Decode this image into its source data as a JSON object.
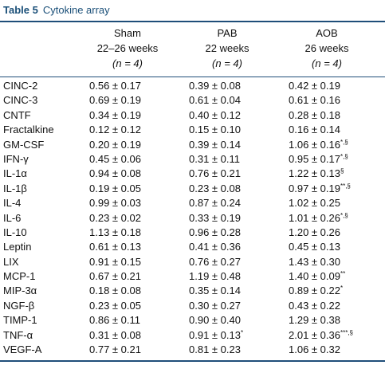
{
  "caption": {
    "label": "Table 5",
    "title": "Cytokine array"
  },
  "columns": [
    {
      "name": "Sham",
      "period": "22–26 weeks",
      "n": "(n = 4)"
    },
    {
      "name": "PAB",
      "period": "22 weeks",
      "n": "(n = 4)"
    },
    {
      "name": "AOB",
      "period": "26 weeks",
      "n": "(n = 4)"
    }
  ],
  "rows": [
    {
      "label": "CINC-2",
      "v": [
        "0.56 ± 0.17",
        "0.39 ± 0.08",
        "0.42 ± 0.19"
      ],
      "sup": [
        "",
        "",
        ""
      ]
    },
    {
      "label": "CINC-3",
      "v": [
        "0.69 ± 0.19",
        "0.61 ± 0.04",
        "0.61 ± 0.16"
      ],
      "sup": [
        "",
        "",
        ""
      ]
    },
    {
      "label": "CNTF",
      "v": [
        "0.34 ± 0.19",
        "0.40 ± 0.12",
        "0.28 ± 0.18"
      ],
      "sup": [
        "",
        "",
        ""
      ]
    },
    {
      "label": "Fractalkine",
      "v": [
        "0.12 ± 0.12",
        "0.15 ± 0.10",
        "0.16 ± 0.14"
      ],
      "sup": [
        "",
        "",
        ""
      ]
    },
    {
      "label": "GM-CSF",
      "v": [
        "0.20 ± 0.19",
        "0.39 ± 0.14",
        "1.06 ± 0.16"
      ],
      "sup": [
        "",
        "",
        "*,§"
      ]
    },
    {
      "label": "IFN-γ",
      "v": [
        "0.45 ± 0.06",
        "0.31 ± 0.11",
        "0.95 ± 0.17"
      ],
      "sup": [
        "",
        "",
        "*,§"
      ]
    },
    {
      "label": "IL-1α",
      "v": [
        "0.94 ± 0.08",
        "0.76 ± 0.21",
        "1.22 ± 0.13"
      ],
      "sup": [
        "",
        "",
        "§"
      ]
    },
    {
      "label": "IL-1β",
      "v": [
        "0.19 ± 0.05",
        "0.23 ± 0.08",
        "0.97 ± 0.19"
      ],
      "sup": [
        "",
        "",
        "**,§"
      ]
    },
    {
      "label": "IL-4",
      "v": [
        "0.99 ± 0.03",
        "0.87 ± 0.24",
        "1.02 ± 0.25"
      ],
      "sup": [
        "",
        "",
        ""
      ]
    },
    {
      "label": "IL-6",
      "v": [
        "0.23 ± 0.02",
        "0.33 ± 0.19",
        "1.01 ± 0.26"
      ],
      "sup": [
        "",
        "",
        "*,§"
      ]
    },
    {
      "label": "IL-10",
      "v": [
        "1.13 ± 0.18",
        "0.96 ± 0.28",
        "1.20 ± 0.26"
      ],
      "sup": [
        "",
        "",
        ""
      ]
    },
    {
      "label": "Leptin",
      "v": [
        "0.61 ± 0.13",
        "0.41 ± 0.36",
        "0.45 ± 0.13"
      ],
      "sup": [
        "",
        "",
        ""
      ]
    },
    {
      "label": "LIX",
      "v": [
        "0.91 ± 0.15",
        "0.76 ± 0.27",
        "1.43 ± 0.30"
      ],
      "sup": [
        "",
        "",
        ""
      ]
    },
    {
      "label": "MCP-1",
      "v": [
        "0.67 ± 0.21",
        "1.19 ± 0.48",
        "1.40 ± 0.09"
      ],
      "sup": [
        "",
        "",
        "**"
      ]
    },
    {
      "label": "MIP-3α",
      "v": [
        "0.18 ± 0.08",
        "0.35 ± 0.14",
        "0.89 ± 0.22"
      ],
      "sup": [
        "",
        "",
        "*"
      ]
    },
    {
      "label": "NGF-β",
      "v": [
        "0.23 ± 0.05",
        "0.30 ± 0.27",
        "0.43 ± 0.22"
      ],
      "sup": [
        "",
        "",
        ""
      ]
    },
    {
      "label": "TIMP-1",
      "v": [
        "0.86 ± 0.11",
        "0.90 ± 0.40",
        "1.29 ± 0.38"
      ],
      "sup": [
        "",
        "",
        ""
      ]
    },
    {
      "label": "TNF-α",
      "v": [
        "0.31 ± 0.08",
        "0.91 ± 0.13",
        "2.01 ± 0.36"
      ],
      "sup": [
        "",
        "*",
        "***,§"
      ]
    },
    {
      "label": "VEGF-A",
      "v": [
        "0.77 ± 0.21",
        "0.81 ± 0.23",
        "1.06 ± 0.32"
      ],
      "sup": [
        "",
        "",
        ""
      ]
    }
  ]
}
